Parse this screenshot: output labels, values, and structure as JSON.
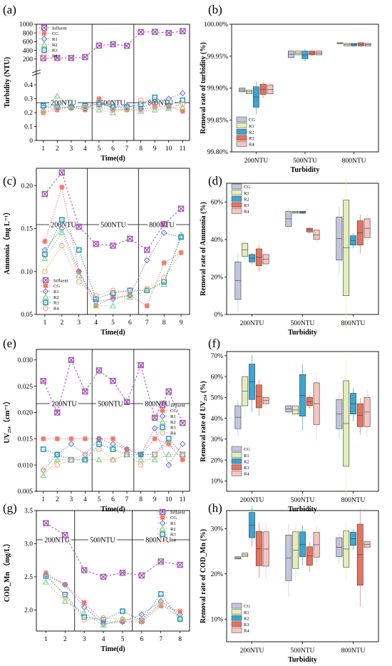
{
  "colors": {
    "Influent": "#a35bb0",
    "CG": "#f2786a",
    "R1": "#7b87c4",
    "R2": "#8fd18d",
    "R3": "#2f9bbd",
    "R4": "#f4a889",
    "box_CG": "#c3c6dc",
    "box_R1": "#e3edb9",
    "box_R2": "#3aa6d1",
    "box_R3": "#e8715e",
    "box_R4": "#f7c4c1"
  },
  "chart_data": [
    {
      "panel": "(a)",
      "type": "line",
      "xlabel": "Time(d)",
      "ylabel": "Turbidity (NTU)",
      "x": [
        1,
        2,
        3,
        4,
        5,
        6,
        7,
        8,
        9,
        10,
        11
      ],
      "y_ticks": [
        "1000",
        "800",
        "600",
        "400",
        "200",
        "0.4",
        "0.3",
        "0.2",
        "0.1",
        "0"
      ],
      "broken_axis": true,
      "conditions": [
        "200NTU",
        "500NTU",
        "800NTU"
      ],
      "legend_position": "top-left",
      "series": [
        {
          "name": "Influent",
          "values": [
            220,
            225,
            225,
            245,
            510,
            540,
            505,
            820,
            825,
            800,
            840
          ]
        },
        {
          "name": "CG",
          "values": [
            0.2,
            0.22,
            0.24,
            0.22,
            0.3,
            0.22,
            0.22,
            0.22,
            0.24,
            0.25,
            0.21
          ]
        },
        {
          "name": "R1",
          "values": [
            0.24,
            0.23,
            0.24,
            0.23,
            0.27,
            0.24,
            0.25,
            0.23,
            0.28,
            0.3,
            0.34
          ]
        },
        {
          "name": "R2",
          "values": [
            0.22,
            0.32,
            0.25,
            0.24,
            0.22,
            0.2,
            0.23,
            0.21,
            0.22,
            0.23,
            0.24
          ]
        },
        {
          "name": "R3",
          "values": [
            0.25,
            0.24,
            0.24,
            0.25,
            0.26,
            0.24,
            0.24,
            0.26,
            0.31,
            0.25,
            0.29
          ]
        },
        {
          "name": "R4",
          "values": [
            0.21,
            0.23,
            0.23,
            0.24,
            0.24,
            0.22,
            0.23,
            0.29,
            0.25,
            0.24,
            0.26
          ]
        }
      ]
    },
    {
      "panel": "(b)",
      "type": "box",
      "xlabel": "Turbidity",
      "ylabel": "Removal rate of turbidity (%)",
      "categories": [
        "200NTU",
        "500NTU",
        "800NTU"
      ],
      "y_ticks": [
        "100.00%",
        "99.95%",
        "99.90%",
        "99.85%",
        "99.80%"
      ],
      "ylim": [
        99.8,
        100.0
      ],
      "legend_position": "bottom-left",
      "series": [
        {
          "name": "CG",
          "boxes": [
            [
              99.894,
              99.9
            ],
            [
              99.948,
              99.958
            ],
            [
              99.97,
              99.971
            ]
          ]
        },
        {
          "name": "R1",
          "boxes": [
            [
              99.891,
              99.897
            ],
            [
              99.952,
              99.958
            ],
            [
              99.966,
              99.97
            ]
          ]
        },
        {
          "name": "R2",
          "boxes": [
            [
              99.87,
              99.902
            ],
            [
              99.946,
              99.958
            ],
            [
              99.966,
              99.97
            ]
          ]
        },
        {
          "name": "R3",
          "boxes": [
            [
              99.89,
              99.906
            ],
            [
              99.952,
              99.958
            ],
            [
              99.966,
              99.971
            ]
          ]
        },
        {
          "name": "R4",
          "boxes": [
            [
              99.891,
              99.905
            ],
            [
              99.952,
              99.958
            ],
            [
              99.966,
              99.97
            ]
          ]
        }
      ]
    },
    {
      "panel": "(c)",
      "type": "line",
      "xlabel": "Time(d)",
      "ylabel": "Ammonia（mg L⁻¹）",
      "x": [
        1,
        2,
        3,
        4,
        5,
        6,
        7,
        8,
        9
      ],
      "ylim": [
        0.05,
        0.22
      ],
      "y_ticks": [
        "0.20",
        "0.15",
        "0.10",
        "0.05"
      ],
      "conditions": [
        "200NTU",
        "500NTU",
        "800NTU"
      ],
      "legend_position": "bottom-left",
      "series": [
        {
          "name": "Influent",
          "values": [
            0.19,
            0.215,
            0.152,
            0.132,
            0.13,
            0.138,
            0.125,
            0.155,
            0.173
          ]
        },
        {
          "name": "CG",
          "values": [
            0.135,
            0.198,
            0.1,
            0.06,
            0.07,
            0.072,
            0.06,
            0.11,
            0.122
          ]
        },
        {
          "name": "R1",
          "values": [
            0.125,
            0.15,
            0.1,
            0.065,
            0.068,
            0.072,
            0.113,
            0.145,
            0.14
          ]
        },
        {
          "name": "R2",
          "values": [
            0.115,
            0.145,
            0.095,
            0.06,
            0.06,
            0.07,
            0.078,
            0.085,
            0.143
          ]
        },
        {
          "name": "R3",
          "values": [
            0.12,
            0.16,
            0.125,
            0.068,
            0.075,
            0.078,
            0.078,
            0.088,
            0.14
          ]
        },
        {
          "name": "R4",
          "values": [
            0.1,
            0.13,
            0.088,
            0.072,
            0.078,
            0.075,
            0.08,
            0.093,
            0.122
          ]
        }
      ]
    },
    {
      "panel": "(d)",
      "type": "box",
      "xlabel": "Turbidity",
      "ylabel": "Removal rate of Ammonia (%)",
      "categories": [
        "200NTU",
        "500NTU",
        "800NTU"
      ],
      "ylim": [
        0,
        70
      ],
      "y_ticks": [
        "60%",
        "40%",
        "20%",
        "0%"
      ],
      "legend_position": "top-left",
      "series": [
        {
          "name": "CG",
          "boxes": [
            [
              8,
              28
            ],
            [
              47,
              55
            ],
            [
              29,
              52
            ]
          ]
        },
        {
          "name": "R1",
          "boxes": [
            [
              31,
              38
            ],
            [
              54,
              55
            ],
            [
              10,
              61
            ]
          ]
        },
        {
          "name": "R2",
          "boxes": [
            [
              28,
              32
            ],
            [
              54,
              55
            ],
            [
              37,
              42
            ]
          ]
        },
        {
          "name": "R3",
          "boxes": [
            [
              26,
              35
            ],
            [
              44,
              46
            ],
            [
              37,
              50
            ]
          ]
        },
        {
          "name": "R4",
          "boxes": [
            [
              27,
              32
            ],
            [
              40,
              45
            ],
            [
              41,
              51
            ]
          ]
        }
      ]
    },
    {
      "panel": "(e)",
      "type": "line",
      "xlabel": "Time(d)",
      "ylabel": "UV₂₅₄（cm⁻¹）",
      "x": [
        1,
        2,
        3,
        4,
        5,
        6,
        7,
        8,
        9,
        10,
        11
      ],
      "ylim": [
        0.005,
        0.032
      ],
      "y_ticks": [
        "0.030",
        "0.025",
        "0.020",
        "0.015",
        "0.010",
        "0.005"
      ],
      "conditions": [
        "200NTU",
        "500NTU",
        "800NTU"
      ],
      "legend_position": "right",
      "series": [
        {
          "name": "Influent",
          "values": [
            0.026,
            0.02,
            0.03,
            0.024,
            0.028,
            0.026,
            0.022,
            0.029,
            0.019,
            0.024,
            0.018
          ]
        },
        {
          "name": "CG",
          "values": [
            0.015,
            0.015,
            0.015,
            0.015,
            0.015,
            0.015,
            0.013,
            0.012,
            0.015,
            0.014,
            0.011
          ]
        },
        {
          "name": "R1",
          "values": [
            0.009,
            0.012,
            0.014,
            0.012,
            0.015,
            0.014,
            0.013,
            0.012,
            0.017,
            0.01,
            0.014
          ]
        },
        {
          "name": "R2",
          "values": [
            0.008,
            0.011,
            0.011,
            0.011,
            0.011,
            0.011,
            0.012,
            0.011,
            0.011,
            0.012,
            0.012
          ]
        },
        {
          "name": "R3",
          "values": [
            0.013,
            0.012,
            0.011,
            0.011,
            0.014,
            0.013,
            0.012,
            0.012,
            0.012,
            0.015,
            0.012
          ]
        },
        {
          "name": "R4",
          "values": [
            0.009,
            0.01,
            0.011,
            0.012,
            0.013,
            0.011,
            0.012,
            0.01,
            0.012,
            0.014,
            0.012
          ]
        }
      ]
    },
    {
      "panel": "(f)",
      "type": "box",
      "xlabel": "Turbidity",
      "ylabel": "Removal rate of UV₂₅₄ (%)",
      "categories": [
        "200NTU",
        "500NTU",
        "800NTU"
      ],
      "ylim": [
        5,
        72
      ],
      "y_ticks": [
        "70%",
        "60%",
        "50%",
        "40%",
        "30%",
        "20%",
        "10%"
      ],
      "legend_position": "bottom-left",
      "series": [
        {
          "name": "CG",
          "boxes": [
            [
              35,
              46
            ],
            [
              43,
              46
            ],
            [
              35,
              49
            ]
          ]
        },
        {
          "name": "R1",
          "boxes": [
            [
              46,
              60
            ],
            [
              42,
              46
            ],
            [
              17,
              58
            ]
          ]
        },
        {
          "name": "R2",
          "boxes": [
            [
              49,
              66
            ],
            [
              41,
              61
            ],
            [
              42,
              52
            ]
          ]
        },
        {
          "name": "R3",
          "boxes": [
            [
              45,
              56
            ],
            [
              46,
              50
            ],
            [
              36,
              47
            ]
          ]
        },
        {
          "name": "R4",
          "boxes": [
            [
              47,
              50
            ],
            [
              37,
              57
            ],
            [
              36,
              50
            ]
          ]
        }
      ]
    },
    {
      "panel": "(g)",
      "type": "line",
      "xlabel": "Time(d)",
      "ylabel": "COD_Mn （mg/L）",
      "x": [
        1,
        2,
        3,
        4,
        5,
        6,
        7,
        8
      ],
      "ylim": [
        1.68,
        3.5
      ],
      "y_ticks": [
        "3.5",
        "3.0",
        "2.5",
        "2.0"
      ],
      "conditions": [
        "200NTU",
        "500NTU",
        "800NTU"
      ],
      "legend_position": "top-right",
      "series": [
        {
          "name": "Influent",
          "values": [
            3.31,
            3.13,
            2.6,
            2.5,
            2.56,
            2.52,
            2.73,
            2.68
          ]
        },
        {
          "name": "CG",
          "values": [
            2.56,
            2.38,
            2.11,
            1.82,
            1.82,
            1.82,
            2.06,
            1.98
          ]
        },
        {
          "name": "R1",
          "values": [
            2.53,
            2.38,
            2.04,
            1.79,
            1.82,
            1.93,
            2.13,
            1.93
          ]
        },
        {
          "name": "R2",
          "values": [
            2.42,
            2.13,
            1.95,
            1.77,
            1.86,
            1.85,
            2.09,
            1.88
          ]
        },
        {
          "name": "R3",
          "values": [
            2.51,
            2.23,
            1.89,
            1.85,
            1.98,
            1.84,
            2.24,
            1.86
          ]
        },
        {
          "name": "R4",
          "values": [
            2.55,
            2.2,
            1.85,
            1.88,
            1.86,
            1.84,
            2.11,
            1.97
          ]
        }
      ]
    },
    {
      "panel": "(h)",
      "type": "box",
      "xlabel": "Turbidity",
      "ylabel": "Removal rate of COD_Mn (%)",
      "categories": [
        "200NTU",
        "500NTU",
        "800NTU"
      ],
      "ylim": [
        5,
        34
      ],
      "y_ticks": [
        "30%",
        "20%",
        "10%"
      ],
      "legend_position": "bottom-left",
      "series": [
        {
          "name": "CG",
          "boxes": [
            [
              23.3,
              23.8
            ],
            [
              18.5,
              28.6
            ],
            [
              23.8,
              28.0
            ]
          ]
        },
        {
          "name": "R1",
          "boxes": [
            [
              23.8,
              24.6
            ],
            [
              21.2,
              29.3
            ],
            [
              21.5,
              29.5
            ]
          ]
        },
        {
          "name": "R2",
          "boxes": [
            [
              28.0,
              33.6
            ],
            [
              23.8,
              29.3
            ],
            [
              26.3,
              29.2
            ]
          ]
        },
        {
          "name": "R3",
          "boxes": [
            [
              21.8,
              29.4
            ],
            [
              21.9,
              26.0
            ],
            [
              17.5,
              31.0
            ]
          ]
        },
        {
          "name": "R4",
          "boxes": [
            [
              21.7,
              29.3
            ],
            [
              23.7,
              29.2
            ],
            [
              25.9,
              27.1
            ]
          ]
        }
      ]
    }
  ]
}
